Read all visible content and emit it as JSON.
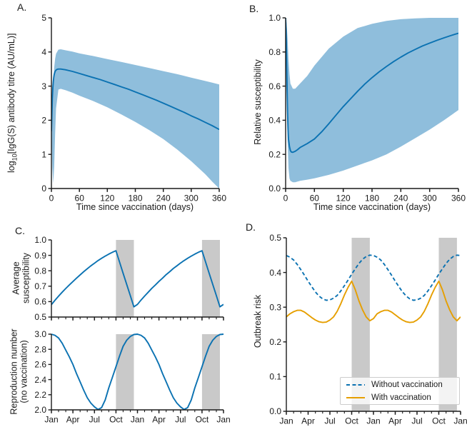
{
  "figure": {
    "panels": [
      {
        "letter": "A.",
        "xlabel": "Time since vaccination (days)",
        "ylabel": {
          "prefix": "log",
          "sub": "10",
          "rest": "[IgG(S) antibody titre (AU/mL)]"
        }
      },
      {
        "letter": "B.",
        "xlabel": "Time since vaccination (days)",
        "ylabel": "Relative susceptibility"
      },
      {
        "letter": "C.",
        "ylabel_top": [
          "Average",
          "susceptibility"
        ],
        "ylabel_bottom": [
          "Reproduction number",
          "(no vaccination)"
        ]
      },
      {
        "letter": "D.",
        "ylabel": "Outbreak risk"
      }
    ]
  },
  "colors": {
    "line_blue": "#0B72B2",
    "band_blue": "#8FBEDC",
    "orange": "#E69F00",
    "shading_gray": "#C9C9C9",
    "axis": "#1A1A1A",
    "legend_border": "#CCCCCC"
  },
  "chart_data": [
    {
      "id": "A",
      "type": "line",
      "xlabel": "Time since vaccination (days)",
      "ylabel": "log10[IgG(S) antibody titre (AU/mL)]",
      "xlim": [
        0,
        360
      ],
      "ylim": [
        0,
        5
      ],
      "grid": false,
      "xticks": {
        "values": [
          0,
          60,
          120,
          180,
          240,
          300,
          360
        ],
        "labels": [
          "0",
          "60",
          "120",
          "180",
          "240",
          "300",
          "360"
        ]
      },
      "yticks": {
        "values": [
          0,
          1,
          2,
          3,
          4,
          5
        ],
        "labels": [
          "0",
          "1",
          "2",
          "3",
          "4",
          "5"
        ]
      },
      "series": [
        {
          "color": "#0B72B2",
          "line_style": "solid",
          "x": [
            0,
            1,
            2,
            3,
            4,
            5,
            6,
            8,
            10,
            12,
            15,
            20,
            25,
            30,
            45,
            60,
            75,
            90,
            105,
            120,
            135,
            150,
            165,
            180,
            195,
            210,
            225,
            240,
            255,
            270,
            285,
            300,
            315,
            330,
            345,
            360
          ],
          "y": [
            1.68,
            2.2,
            2.65,
            2.95,
            3.13,
            3.26,
            3.34,
            3.43,
            3.47,
            3.49,
            3.5,
            3.5,
            3.49,
            3.48,
            3.43,
            3.37,
            3.31,
            3.25,
            3.19,
            3.12,
            3.05,
            2.98,
            2.91,
            2.83,
            2.75,
            2.67,
            2.59,
            2.5,
            2.41,
            2.32,
            2.23,
            2.13,
            2.04,
            1.94,
            1.84,
            1.73
          ]
        }
      ],
      "band": {
        "color": "#8FBEDC",
        "x": [
          0,
          2,
          4,
          6,
          8,
          10,
          15,
          20,
          30,
          45,
          60,
          90,
          120,
          150,
          180,
          210,
          240,
          270,
          300,
          330,
          345,
          360
        ],
        "upper": [
          1.7,
          2.6,
          3.15,
          3.55,
          3.8,
          3.95,
          4.07,
          4.08,
          4.05,
          4.01,
          3.96,
          3.88,
          3.79,
          3.71,
          3.62,
          3.53,
          3.44,
          3.35,
          3.25,
          3.15,
          3.1,
          3.05
        ],
        "lower": [
          1.66,
          0.6,
          0.15,
          0.65,
          1.6,
          2.35,
          2.9,
          2.92,
          2.88,
          2.81,
          2.72,
          2.56,
          2.38,
          2.17,
          1.95,
          1.71,
          1.45,
          1.14,
          0.8,
          0.42,
          0.2,
          0.0
        ]
      }
    },
    {
      "id": "B",
      "type": "line",
      "xlabel": "Time since vaccination (days)",
      "ylabel": "Relative susceptibility",
      "xlim": [
        0,
        360
      ],
      "ylim": [
        0,
        1
      ],
      "grid": false,
      "xticks": {
        "values": [
          0,
          60,
          120,
          180,
          240,
          300,
          360
        ],
        "labels": [
          "0",
          "60",
          "120",
          "180",
          "240",
          "300",
          "360"
        ]
      },
      "yticks": {
        "values": [
          0,
          0.2,
          0.4,
          0.6,
          0.8,
          1.0
        ],
        "labels": [
          "0.0",
          "0.2",
          "0.4",
          "0.6",
          "0.8",
          "1.0"
        ]
      },
      "series": [
        {
          "color": "#0B72B2",
          "line_style": "solid",
          "x": [
            0,
            1,
            2,
            3,
            4,
            5,
            6,
            8,
            10,
            12,
            15,
            20,
            25,
            30,
            45,
            60,
            75,
            90,
            105,
            120,
            135,
            150,
            165,
            180,
            195,
            210,
            225,
            240,
            255,
            270,
            285,
            300,
            315,
            330,
            345,
            360
          ],
          "y": [
            1.0,
            0.93,
            0.78,
            0.6,
            0.45,
            0.345,
            0.29,
            0.245,
            0.222,
            0.214,
            0.212,
            0.218,
            0.228,
            0.24,
            0.263,
            0.29,
            0.332,
            0.38,
            0.43,
            0.48,
            0.525,
            0.57,
            0.612,
            0.65,
            0.684,
            0.715,
            0.744,
            0.77,
            0.794,
            0.815,
            0.835,
            0.852,
            0.868,
            0.883,
            0.897,
            0.91
          ]
        }
      ],
      "band": {
        "color": "#8FBEDC",
        "x": [
          0,
          2,
          4,
          6,
          8,
          10,
          15,
          20,
          30,
          45,
          60,
          90,
          120,
          150,
          180,
          210,
          240,
          270,
          300,
          330,
          360
        ],
        "upper": [
          1.0,
          0.97,
          0.88,
          0.76,
          0.67,
          0.615,
          0.585,
          0.585,
          0.615,
          0.66,
          0.72,
          0.82,
          0.89,
          0.94,
          0.965,
          0.982,
          0.992,
          0.997,
          1.0,
          1.0,
          1.0
        ],
        "lower": [
          1.0,
          0.62,
          0.28,
          0.12,
          0.06,
          0.045,
          0.037,
          0.037,
          0.045,
          0.052,
          0.06,
          0.08,
          0.105,
          0.135,
          0.165,
          0.2,
          0.245,
          0.295,
          0.345,
          0.4,
          0.46
        ]
      }
    },
    {
      "id": "C-top",
      "type": "line",
      "ylabel": "Average susceptibility",
      "xlim": [
        0,
        24
      ],
      "ylim": [
        0.5,
        1.0
      ],
      "grid": false,
      "xticks": {
        "values": [
          0,
          1,
          2,
          3,
          4,
          5,
          6,
          7,
          8,
          9,
          10,
          11,
          12,
          13,
          14,
          15,
          16,
          17,
          18,
          19,
          20,
          21,
          22,
          23,
          24
        ],
        "labels": [
          "Jan",
          "",
          "",
          "Apr",
          "",
          "",
          "Jul",
          "",
          "",
          "Oct",
          "",
          "",
          "Jan",
          "",
          "",
          "Apr",
          "",
          "",
          "Jul",
          "",
          "",
          "Oct",
          "",
          "",
          "Jan"
        ],
        "show_labels": false
      },
      "yticks": {
        "values": [
          0.5,
          0.6,
          0.7,
          0.8,
          0.9,
          1.0
        ],
        "labels": [
          "0.5",
          "0.6",
          "0.7",
          "0.8",
          "0.9",
          "1.0"
        ]
      },
      "shaded_regions": {
        "color": "#C9C9C9",
        "x_ranges": [
          [
            9,
            11.5
          ],
          [
            21,
            23.5
          ]
        ]
      },
      "series": [
        {
          "color": "#0B72B2",
          "line_style": "solid",
          "x": [
            0,
            0.5,
            1,
            1.5,
            2,
            2.5,
            3,
            3.5,
            4,
            4.5,
            5,
            5.5,
            6,
            6.5,
            7,
            7.5,
            8,
            8.5,
            9,
            9.5,
            10,
            10.5,
            11,
            11.5,
            12,
            12.5,
            13,
            13.5,
            14,
            14.5,
            15,
            15.5,
            16,
            16.5,
            17,
            17.5,
            18,
            18.5,
            19,
            19.5,
            20,
            20.5,
            21,
            21.5,
            22,
            22.5,
            23,
            23.5,
            24
          ],
          "y": [
            0.58,
            0.609,
            0.635,
            0.661,
            0.685,
            0.708,
            0.73,
            0.752,
            0.773,
            0.794,
            0.813,
            0.832,
            0.849,
            0.866,
            0.881,
            0.895,
            0.908,
            0.92,
            0.93,
            0.857,
            0.784,
            0.712,
            0.639,
            0.566,
            0.582,
            0.61,
            0.636,
            0.661,
            0.686,
            0.708,
            0.731,
            0.752,
            0.775,
            0.794,
            0.815,
            0.832,
            0.85,
            0.866,
            0.881,
            0.895,
            0.908,
            0.92,
            0.93,
            0.857,
            0.784,
            0.712,
            0.639,
            0.566,
            0.582
          ]
        }
      ]
    },
    {
      "id": "C-bottom",
      "type": "line",
      "ylabel": "Reproduction number (no vaccination)",
      "xlim": [
        0,
        24
      ],
      "ylim": [
        2.0,
        3.0
      ],
      "grid": false,
      "xticks": {
        "values": [
          0,
          1,
          2,
          3,
          4,
          5,
          6,
          7,
          8,
          9,
          10,
          11,
          12,
          13,
          14,
          15,
          16,
          17,
          18,
          19,
          20,
          21,
          22,
          23,
          24
        ],
        "labels": [
          "Jan",
          "",
          "",
          "Apr",
          "",
          "",
          "Jul",
          "",
          "",
          "Oct",
          "",
          "",
          "Jan",
          "",
          "",
          "Apr",
          "",
          "",
          "Jul",
          "",
          "",
          "Oct",
          "",
          "",
          "Jan"
        ]
      },
      "yticks": {
        "values": [
          2.0,
          2.2,
          2.4,
          2.6,
          2.8,
          3.0
        ],
        "labels": [
          "2.0",
          "2.2",
          "2.4",
          "2.6",
          "2.8",
          "3.0"
        ]
      },
      "shaded_regions": {
        "color": "#C9C9C9",
        "x_ranges": [
          [
            9,
            11.5
          ],
          [
            21,
            23.5
          ]
        ]
      },
      "series": [
        {
          "color": "#0B72B2",
          "line_style": "solid",
          "x": [
            0,
            0.5,
            1,
            1.5,
            2,
            2.5,
            3,
            3.5,
            4,
            4.5,
            5,
            5.5,
            6,
            6.5,
            7,
            7.5,
            8,
            8.5,
            9,
            9.5,
            10,
            10.5,
            11,
            11.5,
            12,
            12.5,
            13,
            13.5,
            14,
            14.5,
            15,
            15.5,
            16,
            16.5,
            17,
            17.5,
            18,
            18.5,
            19,
            19.5,
            20,
            20.5,
            21,
            21.5,
            22,
            22.5,
            23,
            23.5,
            24
          ],
          "y": [
            3.0,
            2.985,
            2.95,
            2.88,
            2.79,
            2.7,
            2.6,
            2.48,
            2.37,
            2.26,
            2.16,
            2.09,
            2.04,
            2.005,
            2.03,
            2.13,
            2.29,
            2.43,
            2.57,
            2.71,
            2.84,
            2.92,
            2.97,
            2.995,
            3.0,
            2.985,
            2.95,
            2.88,
            2.79,
            2.7,
            2.6,
            2.48,
            2.37,
            2.26,
            2.16,
            2.09,
            2.04,
            2.005,
            2.03,
            2.13,
            2.29,
            2.43,
            2.57,
            2.71,
            2.84,
            2.92,
            2.97,
            2.995,
            3.0
          ]
        }
      ]
    },
    {
      "id": "D",
      "type": "line",
      "ylabel": "Outbreak risk",
      "xlim": [
        0,
        24
      ],
      "ylim": [
        0.0,
        0.5
      ],
      "grid": false,
      "xticks": {
        "values": [
          0,
          1,
          2,
          3,
          4,
          5,
          6,
          7,
          8,
          9,
          10,
          11,
          12,
          13,
          14,
          15,
          16,
          17,
          18,
          19,
          20,
          21,
          22,
          23,
          24
        ],
        "labels": [
          "Jan",
          "",
          "",
          "Apr",
          "",
          "",
          "Jul",
          "",
          "",
          "Oct",
          "",
          "",
          "Jan",
          "",
          "",
          "Apr",
          "",
          "",
          "Jul",
          "",
          "",
          "Oct",
          "",
          "",
          "Jan"
        ]
      },
      "yticks": {
        "values": [
          0,
          0.1,
          0.2,
          0.3,
          0.4,
          0.5
        ],
        "labels": [
          "0.0",
          "0.1",
          "0.2",
          "0.3",
          "0.4",
          "0.5"
        ]
      },
      "shaded_regions": {
        "color": "#C9C9C9",
        "x_ranges": [
          [
            9,
            11.5
          ],
          [
            21,
            23.5
          ]
        ]
      },
      "legend": {
        "position": "lower right"
      },
      "series": [
        {
          "name": "Without vaccination",
          "color": "#0B72B2",
          "line_style": "dashed",
          "x": [
            0,
            0.5,
            1,
            1.5,
            2,
            2.5,
            3,
            3.5,
            4,
            4.5,
            5,
            5.5,
            6,
            6.5,
            7,
            7.5,
            8,
            8.5,
            9,
            9.5,
            10,
            10.5,
            11,
            11.5,
            12,
            12.5,
            13,
            13.5,
            14,
            14.5,
            15,
            15.5,
            16,
            16.5,
            17,
            17.5,
            18,
            18.5,
            19,
            19.5,
            20,
            20.5,
            21,
            21.5,
            22,
            22.5,
            23,
            23.5,
            24
          ],
          "y": [
            0.449,
            0.444,
            0.436,
            0.423,
            0.408,
            0.392,
            0.375,
            0.359,
            0.344,
            0.332,
            0.324,
            0.32,
            0.321,
            0.326,
            0.334,
            0.347,
            0.362,
            0.378,
            0.395,
            0.411,
            0.426,
            0.438,
            0.446,
            0.45,
            0.449,
            0.444,
            0.436,
            0.423,
            0.408,
            0.392,
            0.375,
            0.359,
            0.344,
            0.332,
            0.324,
            0.32,
            0.321,
            0.326,
            0.334,
            0.347,
            0.362,
            0.378,
            0.395,
            0.411,
            0.426,
            0.438,
            0.446,
            0.45,
            0.449
          ]
        },
        {
          "name": "With vaccination",
          "color": "#E69F00",
          "line_style": "solid",
          "x": [
            0,
            0.5,
            1,
            1.5,
            2,
            2.5,
            3,
            3.5,
            4,
            4.5,
            5,
            5.5,
            6,
            6.5,
            7,
            7.5,
            8,
            8.5,
            9,
            9.5,
            10,
            10.5,
            11,
            11.5,
            12,
            12.5,
            13,
            13.5,
            14,
            14.5,
            15,
            15.5,
            16,
            16.5,
            17,
            17.5,
            18,
            18.5,
            19,
            19.5,
            20,
            20.5,
            21,
            21.5,
            22,
            22.5,
            23,
            23.5,
            24
          ],
          "y": [
            0.272,
            0.281,
            0.287,
            0.291,
            0.291,
            0.286,
            0.278,
            0.27,
            0.263,
            0.258,
            0.256,
            0.257,
            0.263,
            0.272,
            0.288,
            0.31,
            0.335,
            0.357,
            0.375,
            0.35,
            0.318,
            0.292,
            0.272,
            0.261,
            0.267,
            0.281,
            0.287,
            0.291,
            0.291,
            0.286,
            0.278,
            0.27,
            0.263,
            0.258,
            0.256,
            0.257,
            0.263,
            0.272,
            0.288,
            0.31,
            0.335,
            0.357,
            0.375,
            0.35,
            0.318,
            0.292,
            0.272,
            0.261,
            0.272
          ]
        }
      ]
    }
  ]
}
